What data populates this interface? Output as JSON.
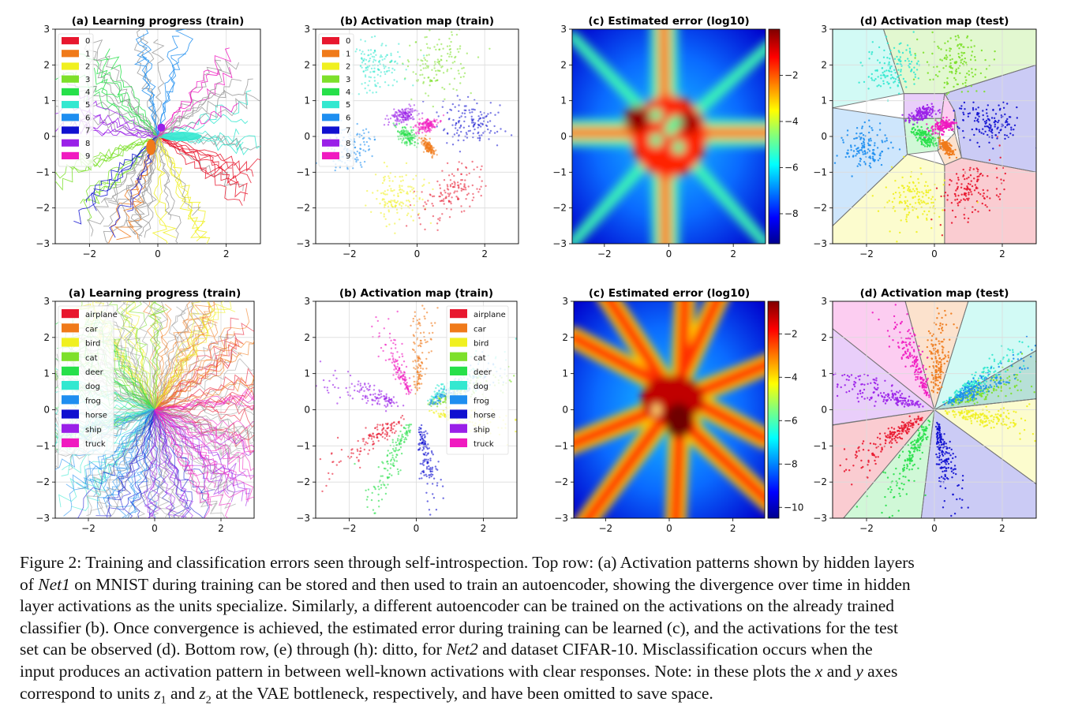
{
  "figure": {
    "panels": [
      {
        "id": "top-a",
        "kind": "progress",
        "title": "(a) Learning progress (train)",
        "legend": [
          "0",
          "1",
          "2",
          "3",
          "4",
          "5",
          "6",
          "7",
          "8",
          "9"
        ],
        "xticks": [
          "−2",
          "0",
          "2"
        ],
        "yticks": [
          "3",
          "2",
          "1",
          "0",
          "−1",
          "−2",
          "−3"
        ]
      },
      {
        "id": "top-b",
        "kind": "scatter",
        "title": "(b) Activation map (train)",
        "legend": [
          "0",
          "1",
          "2",
          "3",
          "4",
          "5",
          "6",
          "7",
          "8",
          "9"
        ],
        "xticks": [
          "−2",
          "0",
          "2"
        ],
        "yticks": [
          "3",
          "2",
          "1",
          "0",
          "−1",
          "−2",
          "−3"
        ]
      },
      {
        "id": "top-c",
        "kind": "heatmap",
        "title": "(c) Estimated error (log10)",
        "xticks": [
          "−2",
          "0",
          "2"
        ],
        "yticks": [
          "3",
          "2",
          "1",
          "0",
          "−1",
          "−2",
          "−3"
        ],
        "colorbar_ticks": [
          "−2",
          "−4",
          "−6",
          "−8"
        ]
      },
      {
        "id": "top-d",
        "kind": "voronoi",
        "title": "(d) Activation map (test)",
        "xticks": [
          "−2",
          "0",
          "2"
        ],
        "yticks": [
          "3",
          "2",
          "1",
          "0",
          "−1",
          "−2",
          "−3"
        ]
      },
      {
        "id": "bot-a",
        "kind": "progress",
        "title": "(a) Learning progress (train)",
        "legend": [
          "airplane",
          "car",
          "bird",
          "cat",
          "deer",
          "dog",
          "frog",
          "horse",
          "ship",
          "truck"
        ],
        "xticks": [
          "−2",
          "0",
          "2"
        ],
        "yticks": [
          "3",
          "2",
          "1",
          "0",
          "−1",
          "−2",
          "−3"
        ]
      },
      {
        "id": "bot-b",
        "kind": "scatter",
        "title": "(b) Activation map (train)",
        "legend": [
          "airplane",
          "car",
          "bird",
          "cat",
          "deer",
          "dog",
          "frog",
          "horse",
          "ship",
          "truck"
        ],
        "xticks": [
          "−2",
          "0",
          "2"
        ],
        "yticks": [
          "3",
          "2",
          "1",
          "0",
          "−1",
          "−2",
          "−3"
        ]
      },
      {
        "id": "bot-c",
        "kind": "heatmap",
        "title": "(c) Estimated error (log10)",
        "xticks": [
          "−2",
          "0",
          "2"
        ],
        "yticks": [
          "3",
          "2",
          "1",
          "0",
          "−1",
          "−2",
          "−3"
        ],
        "colorbar_ticks": [
          "−2",
          "−4",
          "−6",
          "−8",
          "−10"
        ]
      },
      {
        "id": "bot-d",
        "kind": "voronoi",
        "title": "(d) Activation map (test)",
        "xticks": [
          "−2",
          "0",
          "2"
        ],
        "yticks": [
          "3",
          "2",
          "1",
          "0",
          "−1",
          "−2",
          "−3"
        ]
      }
    ],
    "class_colors": [
      "#e8172e",
      "#f07a1a",
      "#f0f020",
      "#7de02a",
      "#27e04a",
      "#33e8d0",
      "#1e8ef0",
      "#1010d0",
      "#9a20e8",
      "#f01ac0"
    ]
  },
  "chart_data": [
    {
      "type": "line",
      "title": "(a) Learning progress (train)",
      "xlim": [
        -3,
        3
      ],
      "ylim": [
        -3,
        3
      ],
      "legend": [
        "0",
        "1",
        "2",
        "3",
        "4",
        "5",
        "6",
        "7",
        "8",
        "9"
      ],
      "legend_position": "top-left",
      "grid": true
    },
    {
      "type": "scatter",
      "title": "(b) Activation map (train)",
      "xlim": [
        -3,
        3
      ],
      "ylim": [
        -3,
        3
      ],
      "legend": [
        "0",
        "1",
        "2",
        "3",
        "4",
        "5",
        "6",
        "7",
        "8",
        "9"
      ],
      "legend_position": "top-left",
      "grid": true,
      "series": [
        {
          "name": "0",
          "center": [
            1.0,
            -1.6
          ]
        },
        {
          "name": "1",
          "center": [
            0.3,
            -0.3
          ]
        },
        {
          "name": "2",
          "center": [
            -0.6,
            -1.7
          ]
        },
        {
          "name": "3",
          "center": [
            0.6,
            2.0
          ]
        },
        {
          "name": "4",
          "center": [
            -0.3,
            0.0
          ]
        },
        {
          "name": "5",
          "center": [
            -1.2,
            1.9
          ]
        },
        {
          "name": "6",
          "center": [
            -2.0,
            -0.3
          ]
        },
        {
          "name": "7",
          "center": [
            1.6,
            0.4
          ]
        },
        {
          "name": "8",
          "center": [
            -0.4,
            0.6
          ]
        },
        {
          "name": "9",
          "center": [
            0.2,
            0.3
          ]
        }
      ]
    },
    {
      "type": "heatmap",
      "title": "(c) Estimated error (log10)",
      "xlim": [
        -3,
        3
      ],
      "ylim": [
        -3,
        3
      ],
      "colorbar_range": [
        -9,
        0
      ]
    },
    {
      "type": "scatter",
      "title": "(d) Activation map (test)",
      "xlim": [
        -3,
        3
      ],
      "ylim": [
        -3,
        3
      ],
      "grid": true
    },
    {
      "type": "line",
      "title": "(a) Learning progress (train)",
      "xlim": [
        -3,
        3
      ],
      "ylim": [
        -3,
        3
      ],
      "legend": [
        "airplane",
        "car",
        "bird",
        "cat",
        "deer",
        "dog",
        "frog",
        "horse",
        "ship",
        "truck"
      ],
      "legend_position": "top-left",
      "grid": true
    },
    {
      "type": "scatter",
      "title": "(b) Activation map (train)",
      "xlim": [
        -3,
        3
      ],
      "ylim": [
        -3,
        3
      ],
      "legend": [
        "airplane",
        "car",
        "bird",
        "cat",
        "deer",
        "dog",
        "frog",
        "horse",
        "ship",
        "truck"
      ],
      "legend_position": "top-right",
      "grid": true
    },
    {
      "type": "heatmap",
      "title": "(c) Estimated error (log10)",
      "xlim": [
        -3,
        3
      ],
      "ylim": [
        -3,
        3
      ],
      "colorbar_range": [
        -10.5,
        -0.5
      ]
    },
    {
      "type": "scatter",
      "title": "(d) Activation map (test)",
      "xlim": [
        -3,
        3
      ],
      "ylim": [
        -3,
        3
      ],
      "grid": true
    }
  ],
  "caption": {
    "lines": [
      [
        "Figure 2: Training and classification errors seen through self-introspection. Top row: (a) Activation patterns shown by hidden layers"
      ],
      [
        "of ",
        {
          "i": "Net1"
        },
        " on MNIST during training can be stored and then used to train an autoencoder, showing the divergence over time in hidden"
      ],
      [
        "layer activations as the units specialize. Similarly, a different autoencoder can be trained on the activations on the already trained"
      ],
      [
        "classifier (b). Once convergence is achieved, the estimated error during training can be learned (c), and the activations for the test"
      ],
      [
        "set can be observed (d). Bottom row, (e) through (h): ditto, for ",
        {
          "i": "Net2"
        },
        " and dataset CIFAR-10. Misclassification occurs when the"
      ],
      [
        "input produces an activation pattern in between well-known activations with clear responses. Note: in these plots the ",
        {
          "i": "x"
        },
        " and ",
        {
          "i": "y"
        },
        " axes"
      ],
      [
        "correspond to units ",
        {
          "i": "z"
        },
        {
          "sub": "1"
        },
        " and ",
        {
          "i": "z"
        },
        {
          "sub": "2"
        },
        " at the VAE bottleneck, respectively, and have been omitted to save space."
      ]
    ]
  }
}
